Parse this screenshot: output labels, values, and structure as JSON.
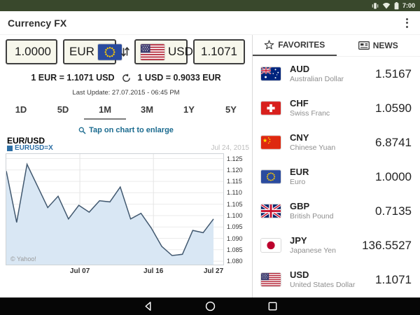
{
  "status_bar": {
    "time": "7:00",
    "icons": [
      "vibrate-icon",
      "wifi-icon",
      "battery-icon"
    ]
  },
  "app_bar": {
    "title": "Currency FX"
  },
  "converter": {
    "from_amount": "1.0000",
    "from_code": "EUR",
    "from_flag": "eu",
    "to_code": "USD",
    "to_amount": "1.1071",
    "to_flag": "us",
    "rate_forward": "1 EUR = 1.1071 USD",
    "rate_backward": "1 USD = 0.9033 EUR",
    "last_update": "Last Update: 27.07.2015 - 06:45 PM"
  },
  "range_tabs": {
    "labels": [
      "1D",
      "5D",
      "1M",
      "3M",
      "1Y",
      "5Y"
    ],
    "active": "1M"
  },
  "enlarge_hint": "Tap on chart to enlarge",
  "chart_data": {
    "type": "area",
    "title": "EUR/USD",
    "legend": "EURUSD=X",
    "date_label": "Jul 24, 2015",
    "watermark": "© Yahoo!",
    "values": [
      1.1195,
      1.097,
      1.1225,
      1.113,
      1.1035,
      1.1085,
      1.0985,
      1.1045,
      1.1015,
      1.1065,
      1.106,
      1.1125,
      1.0985,
      1.101,
      1.0945,
      1.0865,
      1.0825,
      1.083,
      1.0935,
      1.0925,
      1.0985
    ],
    "ylim": [
      1.08,
      1.125
    ],
    "yticks": [
      "1.125",
      "1.120",
      "1.115",
      "1.110",
      "1.105",
      "1.100",
      "1.095",
      "1.090",
      "1.085",
      "1.080"
    ],
    "xticks": [
      {
        "label": "Jul 07",
        "pos": 0.355
      },
      {
        "label": "Jul 16",
        "pos": 0.71
      },
      {
        "label": "Jul 27",
        "pos": 1.0
      }
    ],
    "grid": true,
    "legend_position": "top-left",
    "line_color": "#41586F",
    "fill_color": "#D9E7F4"
  },
  "favorites_panel": {
    "tabs": [
      {
        "label": "FAVORITES",
        "icon": "star-icon",
        "active": true
      },
      {
        "label": "NEWS",
        "icon": "news-icon",
        "active": false
      }
    ],
    "rows": [
      {
        "code": "AUD",
        "name": "Australian Dollar",
        "value": "1.5167",
        "flag": "au"
      },
      {
        "code": "CHF",
        "name": "Swiss Franc",
        "value": "1.0590",
        "flag": "ch"
      },
      {
        "code": "CNY",
        "name": "Chinese Yuan",
        "value": "6.8741",
        "flag": "cn"
      },
      {
        "code": "EUR",
        "name": "Euro",
        "value": "1.0000",
        "flag": "eu"
      },
      {
        "code": "GBP",
        "name": "British Pound",
        "value": "0.7135",
        "flag": "gb"
      },
      {
        "code": "JPY",
        "name": "Japanese Yen",
        "value": "136.5527",
        "flag": "jp"
      },
      {
        "code": "USD",
        "name": "United States Dollar",
        "value": "1.1071",
        "flag": "us"
      }
    ]
  },
  "colors": {
    "status_bar": "#39482C",
    "hint_teal": "#1B6B8F",
    "legend_blue": "#2D6FA5"
  }
}
